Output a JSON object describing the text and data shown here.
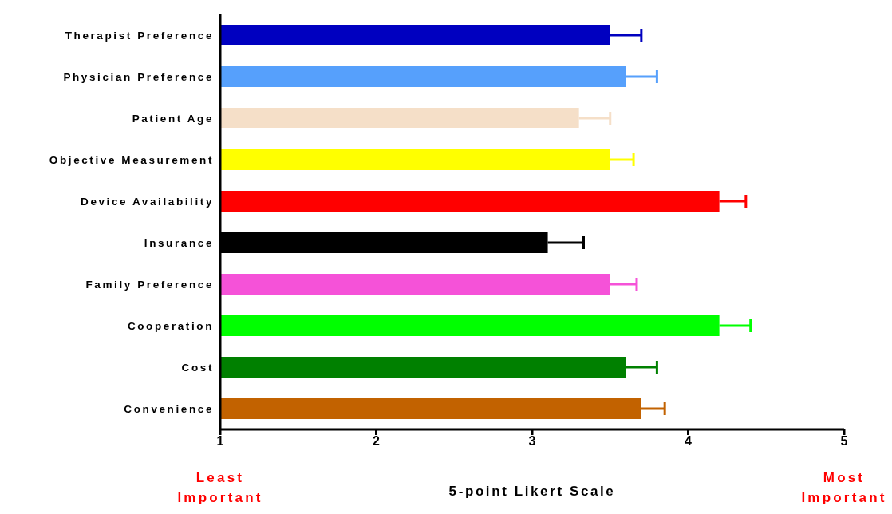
{
  "chart_data": {
    "type": "bar",
    "orientation": "horizontal",
    "xlabel": "5-point Likert Scale",
    "categories": [
      "Therapist Preference",
      "Physician Preference",
      "Patient Age",
      "Objective Measurement",
      "Device Availability",
      "Insurance",
      "Family Preference",
      "Cooperation",
      "Cost",
      "Convenience"
    ],
    "values": [
      3.5,
      3.6,
      3.3,
      3.5,
      4.2,
      3.1,
      3.5,
      4.2,
      3.6,
      3.7
    ],
    "errors": [
      0.2,
      0.2,
      0.2,
      0.15,
      0.17,
      0.23,
      0.17,
      0.2,
      0.2,
      0.15
    ],
    "colors": [
      "#0000c0",
      "#56a0fc",
      "#f5dfc8",
      "#ffff00",
      "#ff0000",
      "#000000",
      "#f552d8",
      "#00ff00",
      "#008000",
      "#c26200"
    ],
    "xlim": [
      1,
      5
    ],
    "xticks": [
      1,
      2,
      3,
      4,
      5
    ],
    "grid": false,
    "legend": false,
    "annotations": [
      "Least Important",
      "Most Important"
    ]
  }
}
